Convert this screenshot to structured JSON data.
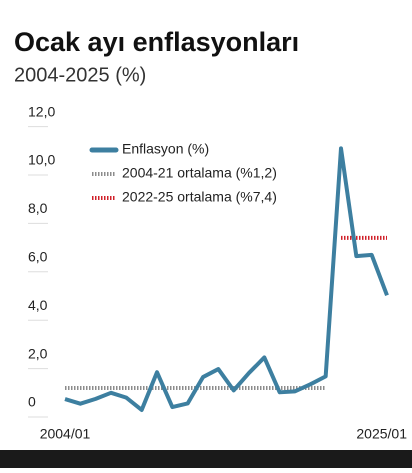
{
  "chart_data": {
    "type": "line",
    "title": "Ocak ayı enflasyonları",
    "subtitle": "2004-2025 (%)",
    "categories": [
      "2004/01",
      null,
      null,
      null,
      null,
      null,
      null,
      null,
      null,
      null,
      null,
      null,
      null,
      null,
      null,
      null,
      null,
      null,
      null,
      null,
      null,
      "2025/01"
    ],
    "series": [
      {
        "name": "Enflasyon (%)",
        "color": "#3d7fa0",
        "style": "solid",
        "values": [
          0.74,
          0.55,
          0.75,
          1.0,
          0.8,
          0.29,
          1.85,
          0.41,
          0.56,
          1.65,
          1.98,
          1.1,
          1.82,
          2.46,
          1.02,
          1.06,
          1.35,
          1.68,
          11.1,
          6.65,
          6.7,
          5.03
        ]
      },
      {
        "name": "2004-21 ortalama (%1,2)",
        "color": "#8c8c8c",
        "style": "dotted",
        "values": [
          1.2,
          1.2,
          1.2,
          1.2,
          1.2,
          1.2,
          1.2,
          1.2,
          1.2,
          1.2,
          1.2,
          1.2,
          1.2,
          1.2,
          1.2,
          1.2,
          1.2,
          1.2,
          null,
          null,
          null,
          null
        ]
      },
      {
        "name": "2022-25 ortalama (%7,4)",
        "color": "#d0202a",
        "style": "dotted",
        "values": [
          null,
          null,
          null,
          null,
          null,
          null,
          null,
          null,
          null,
          null,
          null,
          null,
          null,
          null,
          null,
          null,
          null,
          null,
          7.4,
          7.4,
          7.4,
          7.4
        ]
      }
    ],
    "ylim": [
      0,
      12
    ],
    "yticks": [
      0,
      {
        "value": 2,
        "label": "2,0"
      },
      {
        "value": 4,
        "label": "4,0"
      },
      {
        "value": 6,
        "label": "6,0"
      },
      {
        "value": 8,
        "label": "8,0"
      },
      {
        "value": 10,
        "label": "10,0"
      },
      {
        "value": 12,
        "label": "12,0"
      }
    ]
  }
}
